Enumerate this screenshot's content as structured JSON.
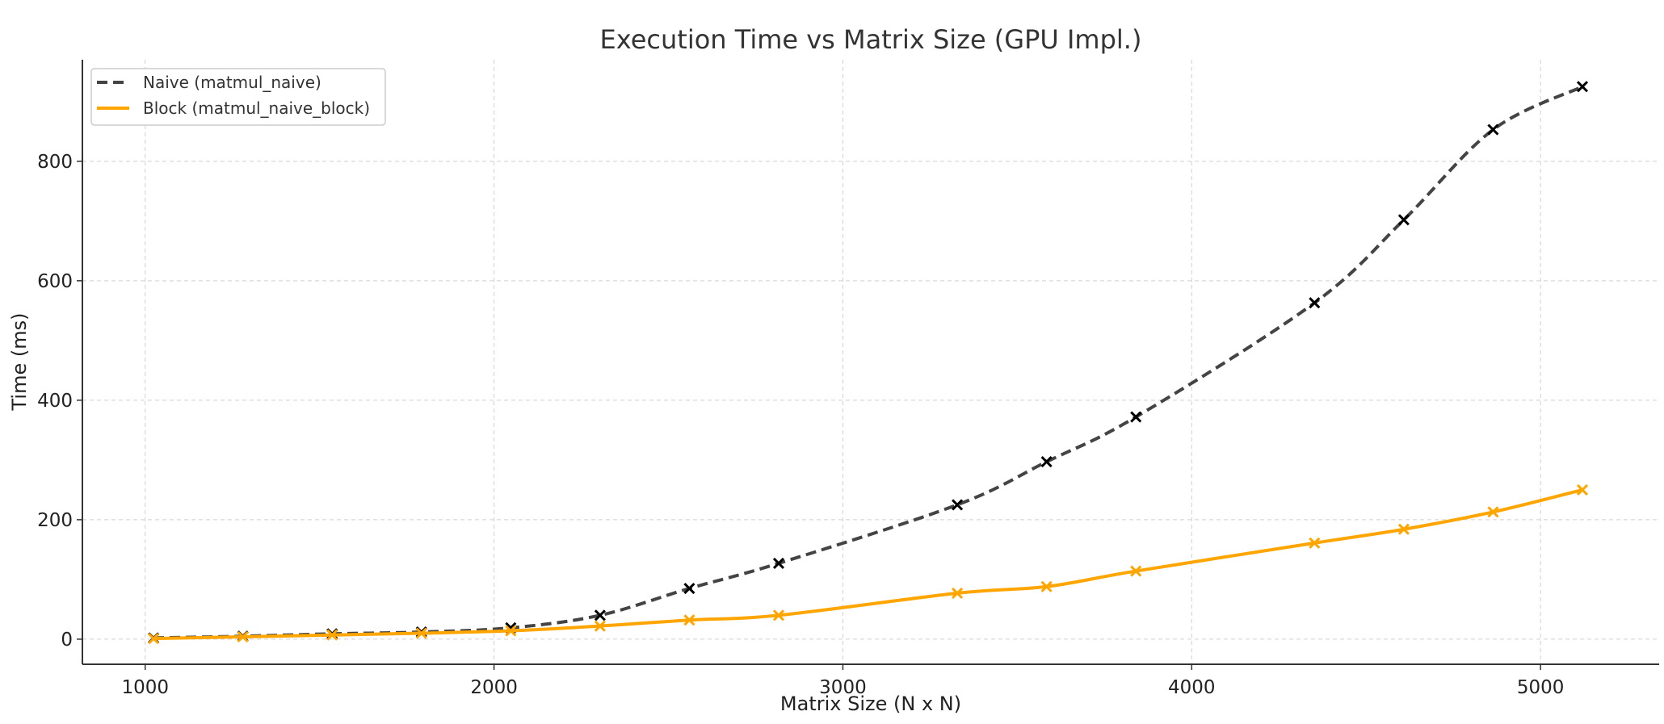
{
  "chart_data": {
    "type": "line",
    "title": "Execution Time vs Matrix Size (GPU Impl.)",
    "xlabel": "Matrix Size (N x N)",
    "ylabel": "Time (ms)",
    "xlim": [
      820,
      5340
    ],
    "ylim": [
      -42,
      970
    ],
    "xticks": [
      1000,
      2000,
      3000,
      4000,
      5000
    ],
    "yticks": [
      0,
      200,
      400,
      600,
      800
    ],
    "grid": true,
    "legend_position": "top-left",
    "series": [
      {
        "name": "Naive (matmul_naive)",
        "color": "#444444",
        "marker_color": "#000000",
        "line_style": "dashed",
        "x": [
          1024,
          1280,
          1536,
          1792,
          2048,
          2304,
          2560,
          2816,
          3328,
          3584,
          3840,
          4352,
          4608,
          4864,
          5120
        ],
        "y": [
          2,
          5,
          9,
          12,
          19,
          40,
          85,
          127,
          225,
          297,
          372,
          563,
          702,
          853,
          925
        ]
      },
      {
        "name": "Block (matmul_naive_block)",
        "color": "#FFA500",
        "marker_color": "#FFA500",
        "line_style": "solid",
        "x": [
          1024,
          1280,
          1536,
          1792,
          2048,
          2304,
          2560,
          2816,
          3328,
          3584,
          3840,
          4352,
          4608,
          4864,
          5120
        ],
        "y": [
          1,
          4,
          7,
          10,
          14,
          22,
          32,
          40,
          77,
          88,
          114,
          161,
          184,
          213,
          250
        ]
      }
    ]
  }
}
